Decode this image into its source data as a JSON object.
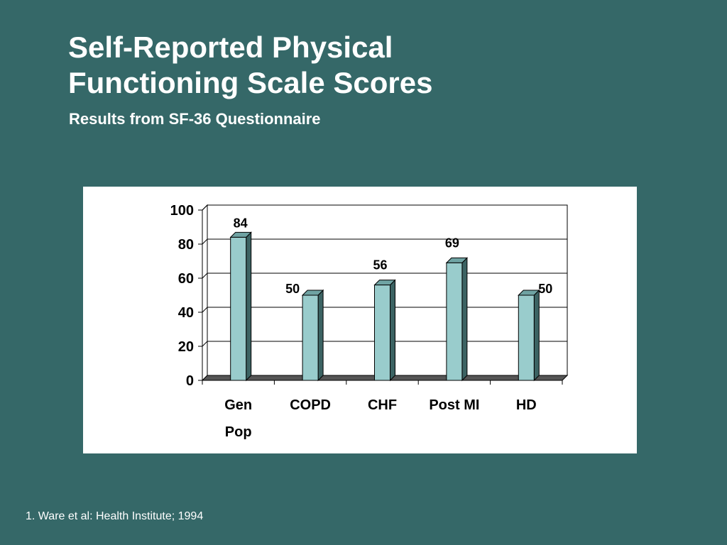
{
  "slide": {
    "title_line1": "Self-Reported Physical",
    "title_line2": "Functioning Scale Scores",
    "subtitle": "Results from SF-36 Questionnaire",
    "footnote": "1. Ware et al: Health Institute; 1994"
  },
  "colors": {
    "background": "#356868",
    "bar_front": "#99CCCC",
    "bar_side": "#3C6363",
    "bar_top": "#6FA3A3",
    "floor": "#555555"
  },
  "chart_data": {
    "type": "bar",
    "title": "",
    "xlabel": "",
    "ylabel": "",
    "categories": [
      [
        "Gen",
        "Pop"
      ],
      [
        "COPD"
      ],
      [
        "CHF"
      ],
      [
        "Post MI"
      ],
      [
        "HD"
      ]
    ],
    "values": [
      84,
      50,
      56,
      69,
      50
    ],
    "data_labels": [
      "84",
      "50",
      "56",
      "69",
      "50"
    ],
    "ylim": [
      0,
      100
    ],
    "yticks": [
      0,
      20,
      40,
      60,
      80,
      100
    ],
    "grid": true,
    "legend": "none",
    "style": "3d"
  }
}
